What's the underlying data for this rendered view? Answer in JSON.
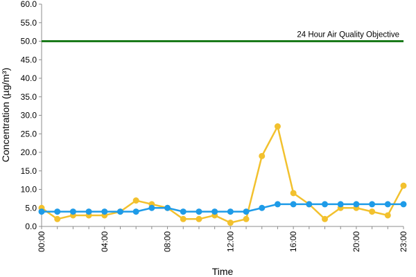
{
  "chart_data": {
    "type": "line",
    "xlabel": "Time",
    "ylabel": "Concentration (µg/m³)",
    "ylim": [
      0,
      60
    ],
    "y_ticks": [
      "0.0",
      "5.0",
      "10.0",
      "15.0",
      "20.0",
      "25.0",
      "30.0",
      "35.0",
      "40.0",
      "45.0",
      "50.0",
      "55.0",
      "60.0"
    ],
    "x": [
      "00:00",
      "01:00",
      "02:00",
      "03:00",
      "04:00",
      "05:00",
      "06:00",
      "07:00",
      "08:00",
      "09:00",
      "10:00",
      "11:00",
      "12:00",
      "13:00",
      "14:00",
      "15:00",
      "16:00",
      "17:00",
      "18:00",
      "19:00",
      "20:00",
      "21:00",
      "22:00",
      "23:00"
    ],
    "x_tick_labels": [
      "00:00",
      "04:00",
      "08:00",
      "12:00",
      "16:00",
      "20:00",
      "23:00"
    ],
    "grid": false,
    "reference_line": {
      "value": 50,
      "label": "24 Hour Air Quality Objective",
      "color": "#1a7a1a"
    },
    "series": [
      {
        "color": "#f2c12e",
        "values": [
          5,
          2,
          3,
          3,
          3,
          4,
          7,
          6,
          5,
          2,
          2,
          3,
          1,
          2,
          19,
          27,
          9,
          6,
          2,
          5,
          5,
          4,
          3,
          11
        ]
      },
      {
        "color": "#1e9be8",
        "values": [
          4,
          4,
          4,
          4,
          4,
          4,
          4,
          5,
          5,
          4,
          4,
          4,
          4,
          4,
          5,
          6,
          6,
          6,
          6,
          6,
          6,
          6,
          6,
          6
        ]
      }
    ]
  }
}
